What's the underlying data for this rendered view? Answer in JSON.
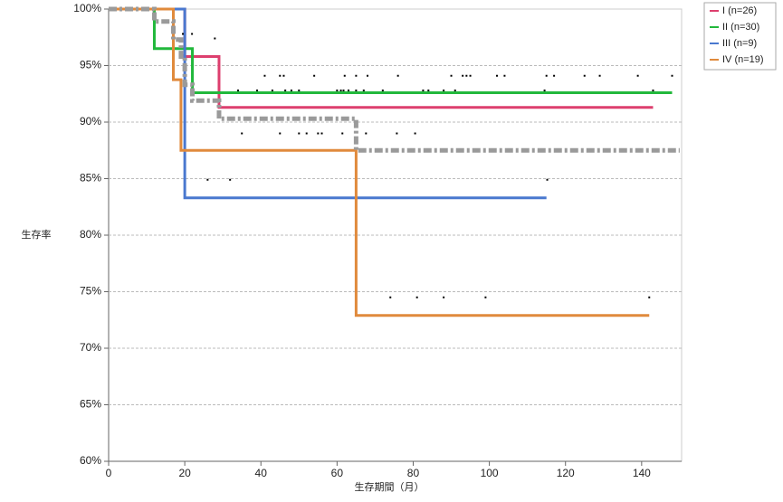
{
  "chart_data": {
    "type": "line",
    "step": true,
    "xlabel": "生存期間（月）",
    "ylabel": "生存率",
    "xlim": [
      0,
      150.5
    ],
    "ylim": [
      60,
      100
    ],
    "xticks": [
      0,
      20,
      40,
      60,
      80,
      100,
      120,
      140
    ],
    "yticks": [
      {
        "value": 60,
        "label": "60%"
      },
      {
        "value": 65,
        "label": "65%"
      },
      {
        "value": 70,
        "label": "70%"
      },
      {
        "value": 75,
        "label": "75%"
      },
      {
        "value": 80,
        "label": "80%"
      },
      {
        "value": 85,
        "label": "85%"
      },
      {
        "value": 90,
        "label": "90%"
      },
      {
        "value": 95,
        "label": "95%"
      },
      {
        "value": 100,
        "label": "100%"
      }
    ],
    "grid": true,
    "legend": "top-right",
    "series": [
      {
        "name": "I (n=26)",
        "color": "#dd3f6e",
        "x": [
          0,
          20,
          29,
          143
        ],
        "values": [
          100,
          95.8,
          91.3,
          91.3
        ]
      },
      {
        "name": "II (n=30)",
        "color": "#22b83c",
        "x": [
          0,
          12,
          22,
          148
        ],
        "values": [
          100,
          96.5,
          92.6,
          92.6
        ]
      },
      {
        "name": "III (n=9)",
        "color": "#4a78cf",
        "x": [
          0,
          20,
          115
        ],
        "values": [
          100,
          83.3,
          83.3
        ]
      },
      {
        "name": "IV (n=19)",
        "color": "#e08a3c",
        "x": [
          0,
          17,
          19,
          65,
          142
        ],
        "values": [
          100,
          93.75,
          87.5,
          72.9,
          72.9
        ]
      },
      {
        "color": "#9a9a9a",
        "dashed": true,
        "x": [
          0,
          12,
          17,
          19,
          20,
          22,
          29,
          65,
          150
        ],
        "values": [
          100,
          98.9,
          97.3,
          95.8,
          93.3,
          91.9,
          90.3,
          87.5,
          87.5
        ]
      }
    ],
    "censored": {
      "color": "#000000",
      "x": [
        19.5,
        21.9,
        27.9,
        41,
        45,
        46,
        54,
        62,
        65,
        68,
        76,
        90,
        93,
        94,
        95,
        102,
        104,
        115,
        117,
        125,
        129,
        139,
        148,
        34,
        39,
        43,
        46.4,
        48,
        50,
        60,
        61,
        61.7,
        63,
        65,
        67,
        72,
        82.6,
        84,
        88,
        91,
        114.5,
        143,
        35,
        45,
        50,
        52,
        55,
        56,
        61.4,
        67.6,
        75.7,
        80.5,
        26,
        31.9,
        115.2,
        74,
        81,
        88,
        99,
        142
      ],
      "y": [
        97.8,
        97.8,
        97.4,
        94.1,
        94.1,
        94.1,
        94.1,
        94.1,
        94.1,
        94.1,
        94.1,
        94.1,
        94.1,
        94.1,
        94.1,
        94.1,
        94.1,
        94.1,
        94.1,
        94.1,
        94.1,
        94.1,
        94.1,
        92.8,
        92.8,
        92.8,
        92.8,
        92.8,
        92.8,
        92.8,
        92.8,
        92.8,
        92.8,
        92.8,
        92.8,
        92.8,
        92.8,
        92.8,
        92.8,
        92.8,
        92.8,
        92.8,
        89,
        89,
        89,
        89,
        89,
        89,
        89,
        89,
        89,
        89,
        84.9,
        84.9,
        84.9,
        74.5,
        74.5,
        74.5,
        74.5,
        74.5
      ]
    }
  }
}
